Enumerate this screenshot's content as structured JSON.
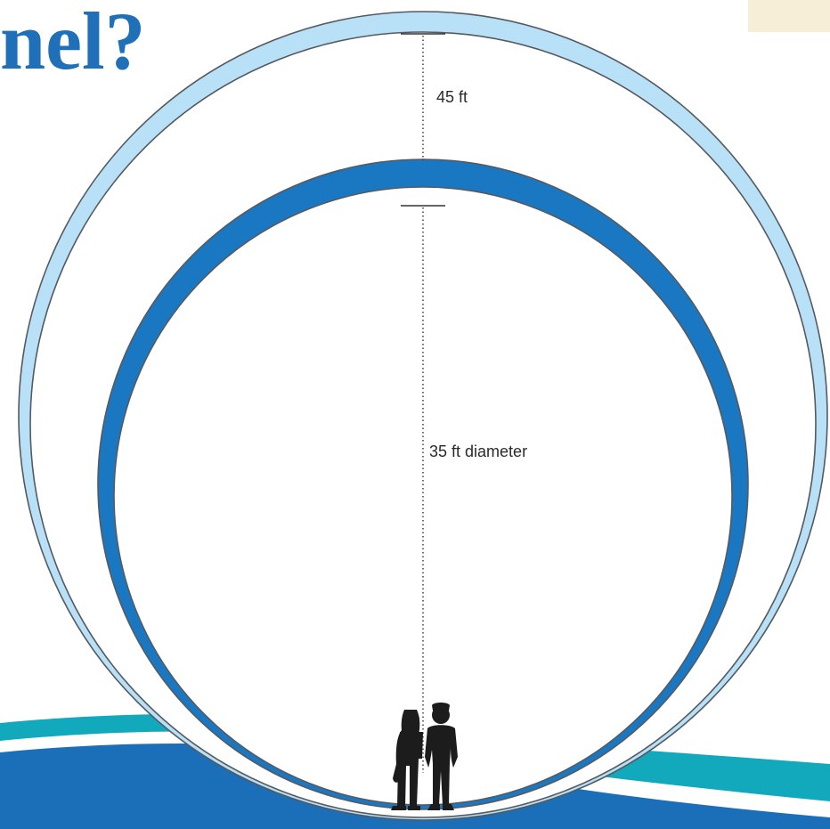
{
  "title": "nel?",
  "labels": {
    "clearance": "45 ft",
    "diameter": "35 ft diameter"
  },
  "colors": {
    "title": "#1f6fb9",
    "outer_ring_fill": "#b8e0f7",
    "inner_ring_fill": "#1a78c2",
    "ring_stroke": "#555a60",
    "wave_teal": "#12a9bd",
    "wave_blue": "#1a6fb8",
    "corner_tab": "#f6eed6"
  },
  "icons": [
    "person-silhouette-icon",
    "person-silhouette-icon"
  ]
}
